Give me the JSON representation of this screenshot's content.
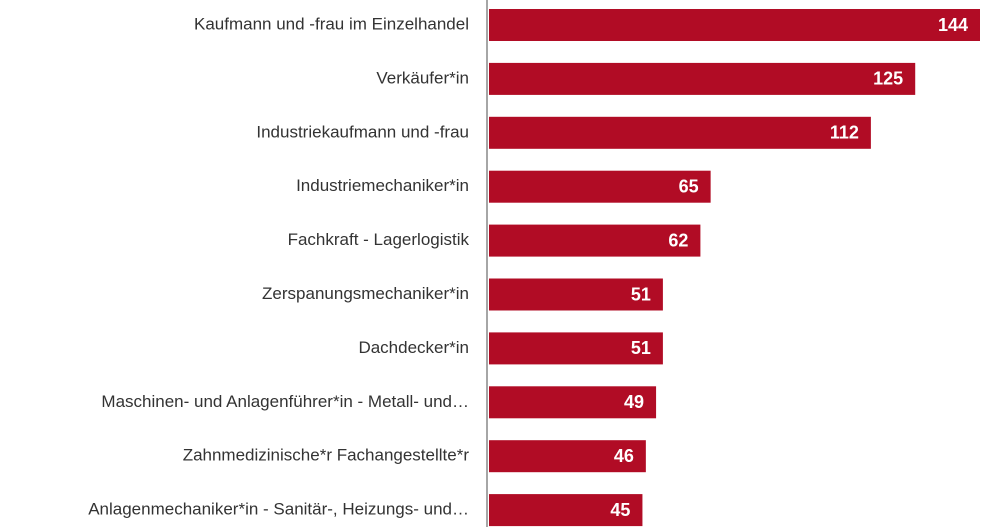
{
  "chart_data": {
    "type": "bar",
    "orientation": "horizontal",
    "color": "#b10c25",
    "categories": [
      "Kaufmann und -frau im Einzelhandel",
      "Verkäufer*in",
      "Industriekaufmann und -frau",
      "Industriemechaniker*in",
      "Fachkraft - Lagerlogistik",
      "Zerspanungsmechaniker*in",
      "Dachdecker*in",
      "Maschinen- und Anlagenführer*in - Metall- und…",
      "Zahnmedizinische*r Fachangestellte*r",
      "Anlagenmechaniker*in - Sanitär-, Heizungs- und…"
    ],
    "values": [
      144,
      125,
      112,
      65,
      62,
      51,
      51,
      49,
      46,
      45
    ]
  }
}
